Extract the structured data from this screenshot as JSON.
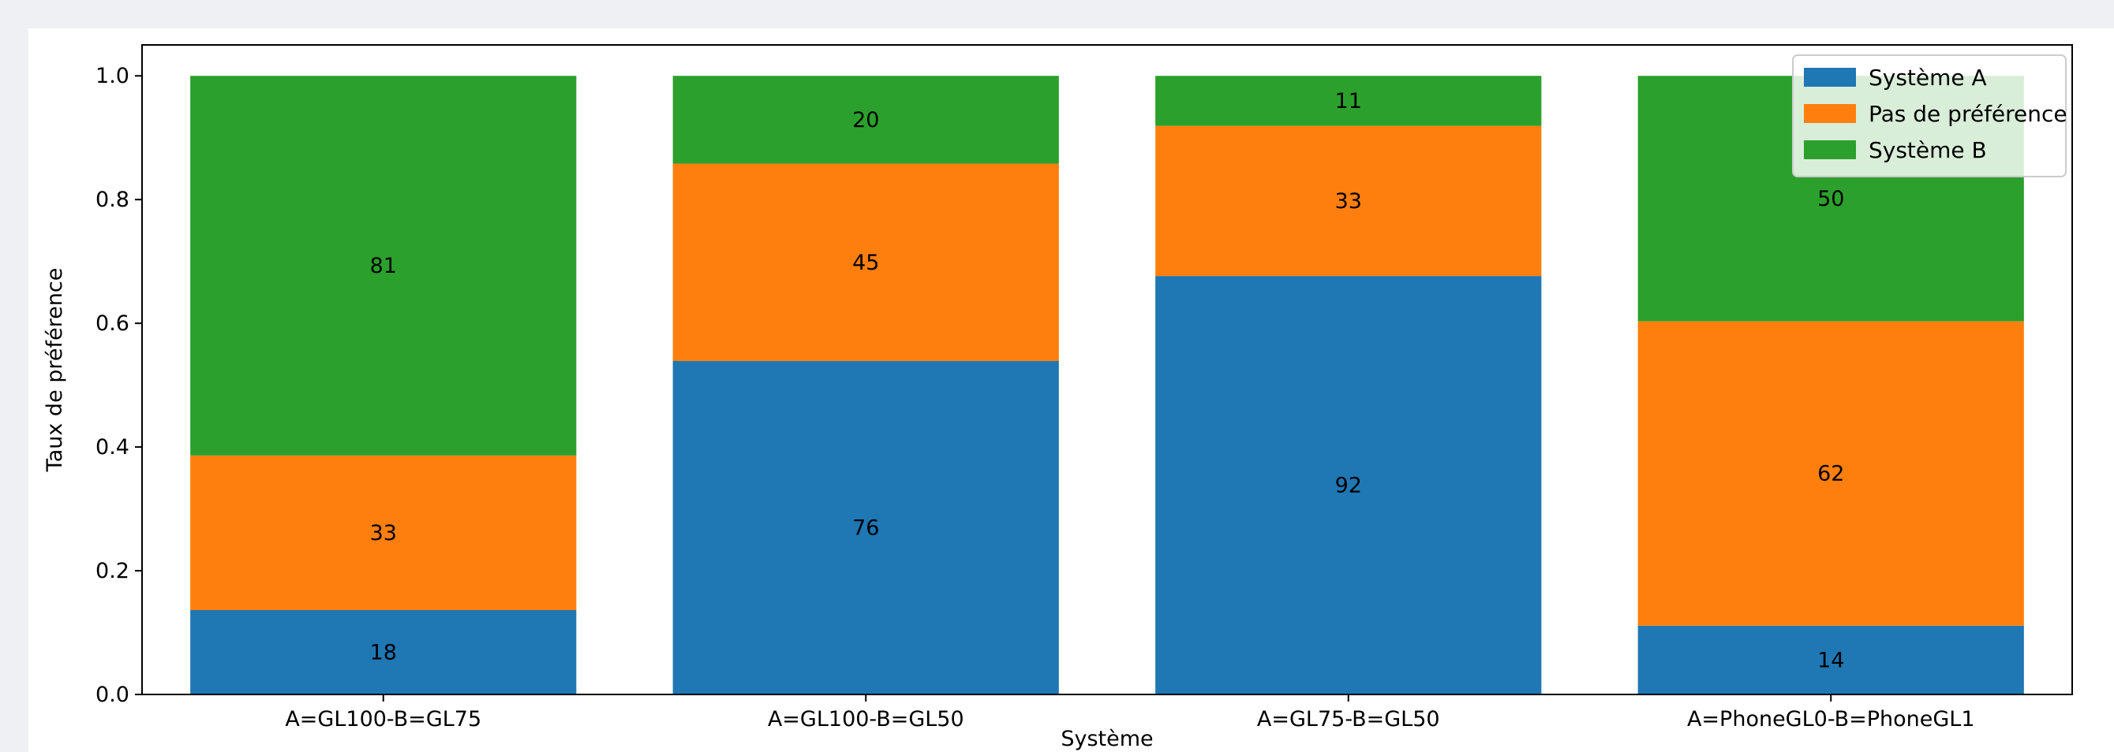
{
  "chart_data": {
    "type": "bar",
    "stacked": true,
    "normalized": true,
    "categories": [
      "A=GL100-B=GL75",
      "A=GL100-B=GL50",
      "A=GL75-B=GL50",
      "A=PhoneGL0-B=PhoneGL1"
    ],
    "series": [
      {
        "name": "Système A",
        "color": "#1f77b4",
        "counts": [
          18,
          76,
          92,
          14
        ]
      },
      {
        "name": "Pas de préférence",
        "color": "#ff7f0e",
        "counts": [
          33,
          45,
          33,
          62
        ]
      },
      {
        "name": "Système B",
        "color": "#2ca02c",
        "counts": [
          81,
          20,
          11,
          50
        ]
      }
    ],
    "xlabel": "Système",
    "ylabel": "Taux de préférence",
    "ylim": [
      0,
      1.05
    ],
    "yticks": [
      "0.0",
      "0.2",
      "0.4",
      "0.6",
      "0.8",
      "1.0"
    ],
    "legend_position": "top-right",
    "grid": false
  }
}
